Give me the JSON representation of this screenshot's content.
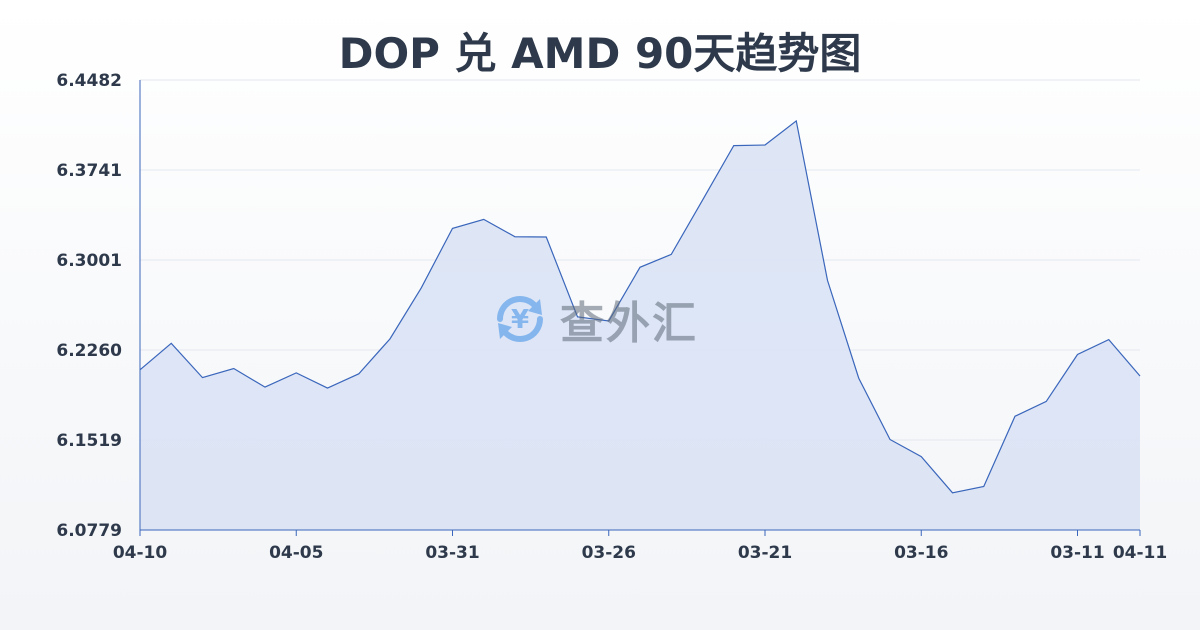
{
  "watermark": {
    "text": "查外汇",
    "symbol": "¥"
  },
  "chart_data": {
    "type": "area",
    "title": "DOP 兑 AMD 90天趋势图",
    "xlabel": "",
    "ylabel": "",
    "ylim": [
      6.0779,
      6.4482
    ],
    "y_ticks": [
      "6.4482",
      "6.3741",
      "6.3001",
      "6.2260",
      "6.1519",
      "6.0779"
    ],
    "x_tick_labels": [
      "04-10",
      "04-05",
      "03-31",
      "03-26",
      "03-21",
      "03-16",
      "03-11",
      "04-11"
    ],
    "x_tick_positions": [
      0,
      5,
      10,
      15,
      20,
      25,
      30,
      32
    ],
    "grid": true,
    "legend": "none",
    "colors": {
      "line": "#3a66bb",
      "fill": "#d8e2f4",
      "grid": "#e3e7ee",
      "axis": "#3a66bb"
    },
    "series": [
      {
        "values": [
          6.2097,
          6.2315,
          6.2033,
          6.2108,
          6.1955,
          6.2072,
          6.1947,
          6.2064,
          6.2352,
          6.2771,
          6.3261,
          6.3335,
          6.3192,
          6.319,
          6.2533,
          6.2499,
          6.2941,
          6.3047,
          6.3493,
          6.3942,
          6.3947,
          6.4145,
          6.2833,
          6.2028,
          6.1524,
          6.1383,
          6.1085,
          6.1137,
          6.1715,
          6.1837,
          6.2223,
          6.2346,
          6.2046
        ]
      }
    ]
  }
}
